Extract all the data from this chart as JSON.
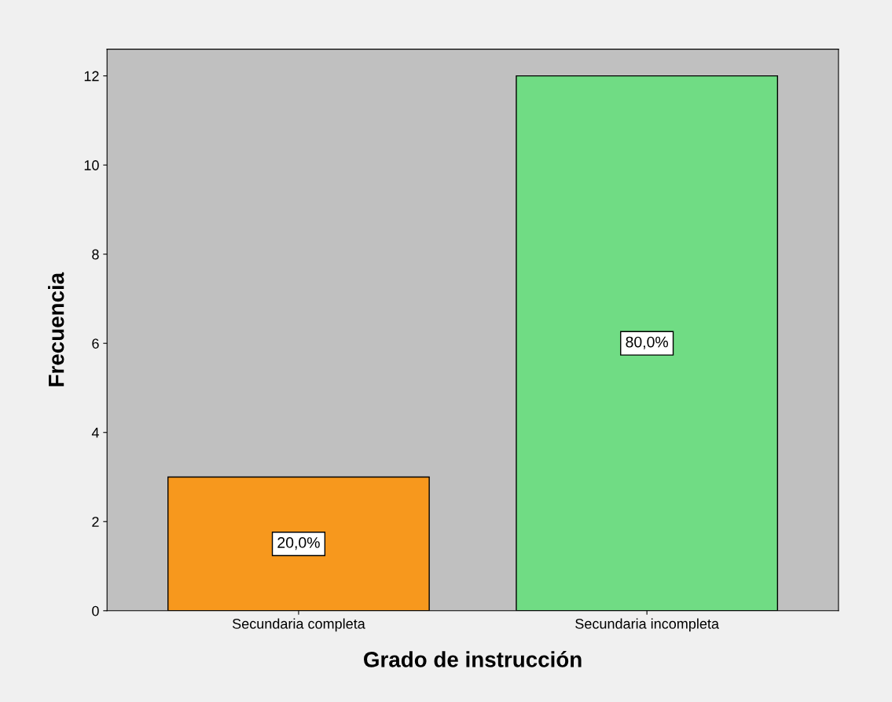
{
  "chart_data": {
    "type": "bar",
    "xlabel": "Grado de instrucción",
    "ylabel": "Frecuencia",
    "categories": [
      "Secundaria completa",
      "Secundaria incompleta"
    ],
    "values": [
      3,
      12
    ],
    "colors": [
      "#f7981d",
      "#70dc84"
    ],
    "annotations": [
      "20,0%",
      "80,0%"
    ],
    "ylim": [
      0,
      12.6
    ],
    "yticks": [
      0,
      2,
      4,
      6,
      8,
      10,
      12
    ],
    "grid": false
  }
}
